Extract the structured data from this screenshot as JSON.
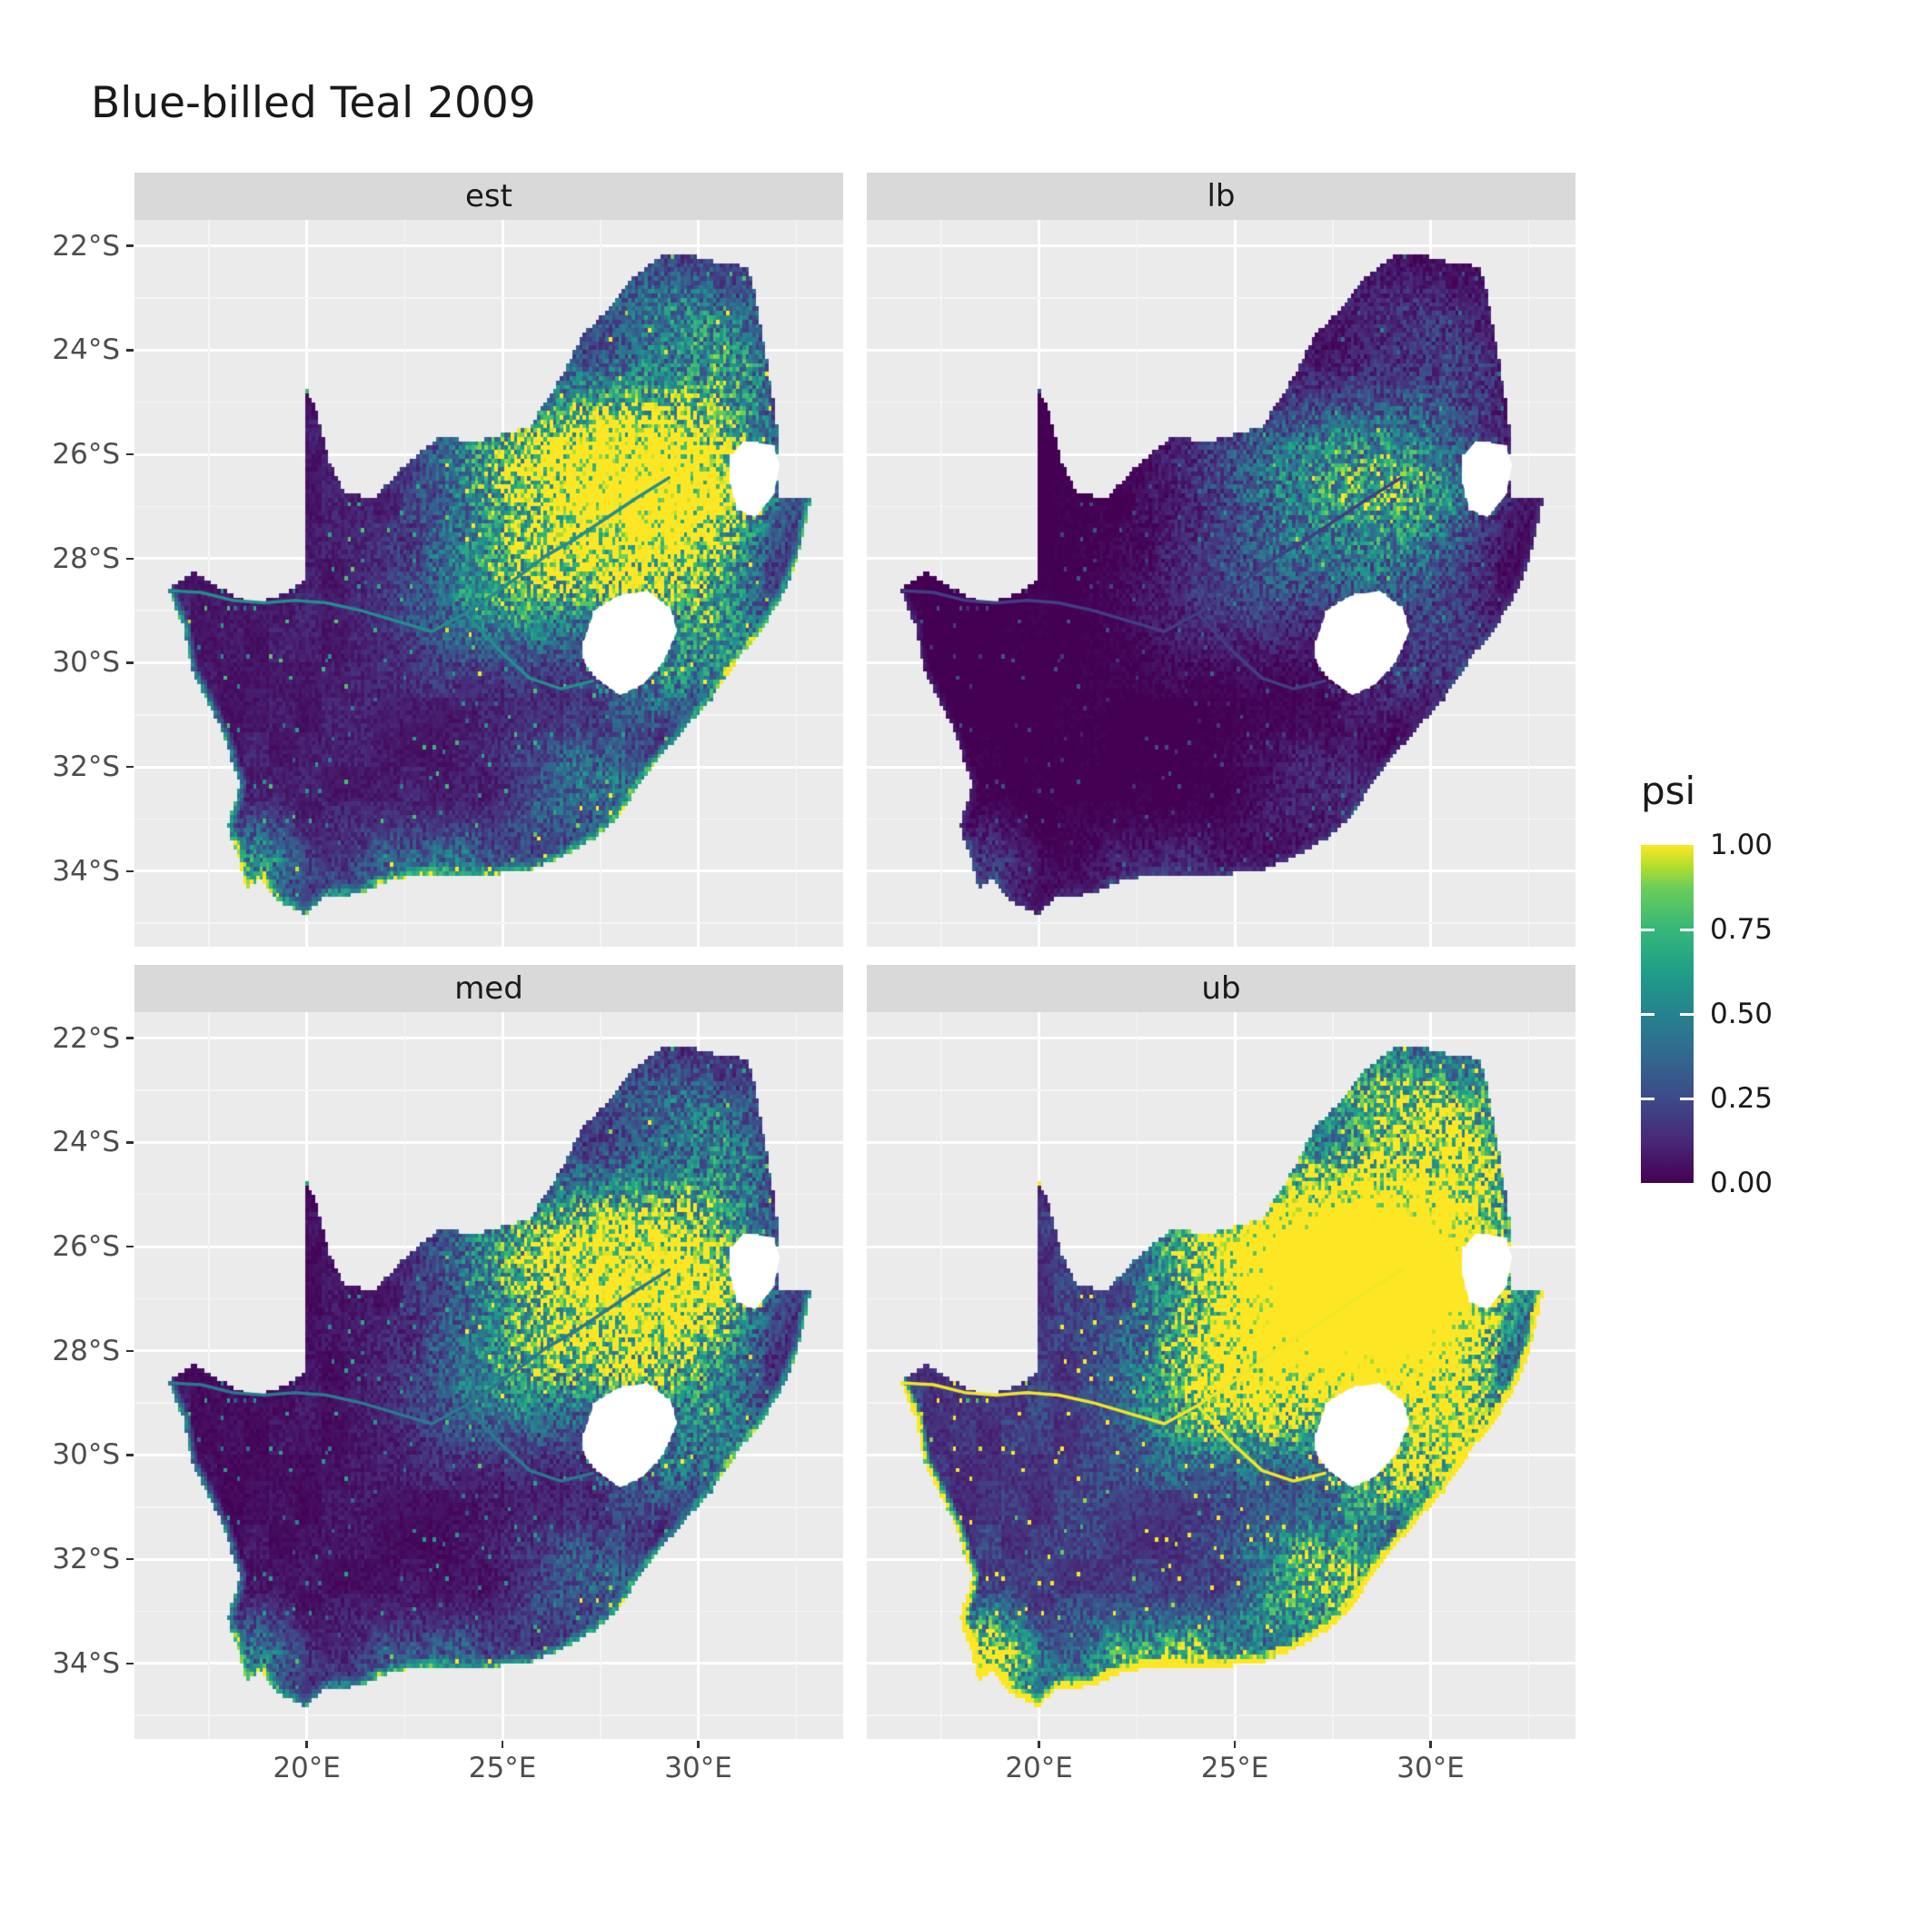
{
  "title": "Blue-billed Teal 2009",
  "chart_data": {
    "type": "heatmap",
    "subtype": "faceted-raster-occupancy-map",
    "region": "South Africa",
    "title": "Blue-billed Teal 2009",
    "facets": [
      "est",
      "lb",
      "med",
      "ub"
    ],
    "legend": {
      "title": "psi",
      "tick_labels": [
        "1.00",
        "0.75",
        "0.50",
        "0.25",
        "0.00"
      ],
      "tick_values": [
        1.0,
        0.75,
        0.5,
        0.25,
        0.0
      ]
    },
    "x_axis": {
      "tick_labels": [
        "20°E",
        "25°E",
        "30°E"
      ],
      "tick_values": [
        20,
        25,
        30
      ],
      "minor_values": [
        17.5,
        22.5,
        27.5,
        32.5
      ],
      "range": [
        15.6,
        33.7
      ]
    },
    "y_axis": {
      "tick_labels": [
        "22°S",
        "24°S",
        "26°S",
        "28°S",
        "30°S",
        "32°S",
        "34°S"
      ],
      "tick_values": [
        -22,
        -24,
        -26,
        -28,
        -30,
        -32,
        -34
      ],
      "minor_values": [
        -21,
        -23,
        -25,
        -27,
        -29,
        -31,
        -33,
        -35
      ],
      "range": [
        -35.45,
        -21.5
      ]
    },
    "colormap": {
      "name": "viridis",
      "stops": [
        [
          0.0,
          "#440154"
        ],
        [
          0.125,
          "#482878"
        ],
        [
          0.25,
          "#3E4A89"
        ],
        [
          0.375,
          "#31688E"
        ],
        [
          0.5,
          "#26828E"
        ],
        [
          0.625,
          "#1F9E89"
        ],
        [
          0.75,
          "#35B779"
        ],
        [
          0.875,
          "#6DCD59"
        ],
        [
          0.9375,
          "#B4DE2C"
        ],
        [
          1.0,
          "#FDE725"
        ]
      ]
    },
    "theme": {
      "panel_bg": "#EBEBEB",
      "grid_major": "#FFFFFF",
      "grid_minor": "#F4F4F4",
      "strip_bg": "#D9D9D9",
      "strip_text": "#1A1A1A",
      "axis_text": "#4D4D4D",
      "tick_mark": "#333333",
      "hole_fill": "#FFFFFF"
    },
    "geometry": {
      "coast_from": 30,
      "outer": [
        [
          16.45,
          -28.6
        ],
        [
          17.1,
          -28.25
        ],
        [
          17.75,
          -28.55
        ],
        [
          18.6,
          -28.87
        ],
        [
          19.4,
          -28.68
        ],
        [
          19.98,
          -28.43
        ],
        [
          19.99,
          -24.77
        ],
        [
          20.28,
          -25.2
        ],
        [
          20.55,
          -26.1
        ],
        [
          20.95,
          -26.7
        ],
        [
          21.7,
          -26.85
        ],
        [
          22.6,
          -26.15
        ],
        [
          23.4,
          -25.65
        ],
        [
          24.3,
          -25.75
        ],
        [
          25.1,
          -25.6
        ],
        [
          25.7,
          -25.45
        ],
        [
          26.4,
          -24.65
        ],
        [
          27.1,
          -23.65
        ],
        [
          27.75,
          -23.2
        ],
        [
          28.35,
          -22.6
        ],
        [
          29.05,
          -22.2
        ],
        [
          29.7,
          -22.15
        ],
        [
          30.4,
          -22.3
        ],
        [
          31.3,
          -22.4
        ],
        [
          31.6,
          -23.55
        ],
        [
          31.8,
          -24.4
        ],
        [
          31.98,
          -25.2
        ],
        [
          32.05,
          -25.8
        ],
        [
          32.02,
          -26.4
        ],
        [
          32.06,
          -26.85
        ],
        [
          32.89,
          -26.86
        ],
        [
          32.55,
          -27.95
        ],
        [
          32.2,
          -28.65
        ],
        [
          31.7,
          -29.3
        ],
        [
          31.05,
          -29.9
        ],
        [
          30.35,
          -30.7
        ],
        [
          29.5,
          -31.4
        ],
        [
          28.7,
          -32.1
        ],
        [
          27.95,
          -33.0
        ],
        [
          27.3,
          -33.4
        ],
        [
          26.4,
          -33.78
        ],
        [
          25.65,
          -34.0
        ],
        [
          24.8,
          -34.05
        ],
        [
          23.95,
          -34.12
        ],
        [
          23.1,
          -34.08
        ],
        [
          22.25,
          -34.15
        ],
        [
          21.3,
          -34.45
        ],
        [
          20.5,
          -34.48
        ],
        [
          20.0,
          -34.82
        ],
        [
          19.3,
          -34.6
        ],
        [
          18.82,
          -34.15
        ],
        [
          18.46,
          -34.34
        ],
        [
          18.32,
          -33.92
        ],
        [
          17.98,
          -33.15
        ],
        [
          18.28,
          -32.35
        ],
        [
          17.85,
          -31.35
        ],
        [
          17.05,
          -30.15
        ],
        [
          16.85,
          -29.3
        ]
      ],
      "lesotho_hole": [
        [
          27.05,
          -29.65
        ],
        [
          27.35,
          -29.0
        ],
        [
          27.95,
          -28.72
        ],
        [
          28.7,
          -28.62
        ],
        [
          29.3,
          -28.98
        ],
        [
          29.45,
          -29.4
        ],
        [
          29.1,
          -29.98
        ],
        [
          28.6,
          -30.4
        ],
        [
          28.0,
          -30.62
        ],
        [
          27.45,
          -30.32
        ],
        [
          27.1,
          -30.0
        ]
      ],
      "eswatini_hole": [
        [
          30.82,
          -26.05
        ],
        [
          31.15,
          -25.75
        ],
        [
          31.9,
          -25.82
        ],
        [
          32.08,
          -26.2
        ],
        [
          31.92,
          -26.78
        ],
        [
          31.45,
          -27.2
        ],
        [
          31.0,
          -27.05
        ],
        [
          30.8,
          -26.5
        ]
      ],
      "rivers": [
        [
          [
            29.25,
            -26.45
          ],
          [
            28.4,
            -26.85
          ],
          [
            27.6,
            -27.25
          ],
          [
            26.8,
            -27.65
          ],
          [
            26.1,
            -27.95
          ],
          [
            25.4,
            -28.35
          ],
          [
            24.65,
            -28.75
          ],
          [
            24.05,
            -29.05
          ],
          [
            23.2,
            -29.4
          ],
          [
            22.3,
            -29.2
          ],
          [
            21.4,
            -29.0
          ],
          [
            20.5,
            -28.85
          ],
          [
            19.7,
            -28.8
          ],
          [
            18.9,
            -28.85
          ],
          [
            18.1,
            -28.8
          ],
          [
            17.3,
            -28.65
          ],
          [
            16.55,
            -28.62
          ]
        ],
        [
          [
            27.3,
            -30.35
          ],
          [
            26.5,
            -30.5
          ],
          [
            25.7,
            -30.3
          ],
          [
            24.9,
            -29.75
          ],
          [
            24.05,
            -29.05
          ]
        ]
      ]
    },
    "field": {
      "cell_deg": 0.08333,
      "floor": 0.04,
      "noise_mul_min": 0.45,
      "noise_mul_span": 1.15,
      "dot_threshold": 0.985,
      "dot_boost": 0.5,
      "rim_width": 0.22,
      "gaussians": [
        [
          1.05,
          28.1,
          -26.3,
          1.7,
          1.15
        ],
        [
          0.85,
          29.8,
          -26.9,
          1.3,
          1.0
        ],
        [
          0.55,
          26.3,
          -27.9,
          1.6,
          1.1
        ],
        [
          0.5,
          30.5,
          -29.5,
          0.9,
          0.8
        ],
        [
          0.4,
          25.2,
          -26.0,
          1.6,
          0.8
        ],
        [
          0.4,
          30.8,
          -24.3,
          1.0,
          1.0
        ],
        [
          0.45,
          18.8,
          -33.9,
          0.7,
          0.6
        ],
        [
          0.3,
          23.3,
          -33.9,
          1.8,
          0.5
        ],
        [
          0.35,
          27.3,
          -32.4,
          1.3,
          0.8
        ],
        [
          0.3,
          29.0,
          -23.2,
          1.2,
          0.7
        ],
        [
          0.35,
          28.7,
          -28.4,
          1.0,
          0.55
        ],
        [
          0.3,
          28.9,
          -30.4,
          0.9,
          0.5
        ],
        [
          0.25,
          24.3,
          -28.8,
          1.6,
          1.0
        ]
      ],
      "facet_params": {
        "est": {
          "gain": 1.0,
          "offset": 0.0,
          "rim": 0.55
        },
        "lb": {
          "gain": 0.42,
          "offset": -0.05,
          "rim": 0.12
        },
        "med": {
          "gain": 0.85,
          "offset": -0.02,
          "rim": 0.5
        },
        "ub": {
          "gain": 1.8,
          "offset": 0.04,
          "rim": 1.3
        }
      }
    }
  }
}
